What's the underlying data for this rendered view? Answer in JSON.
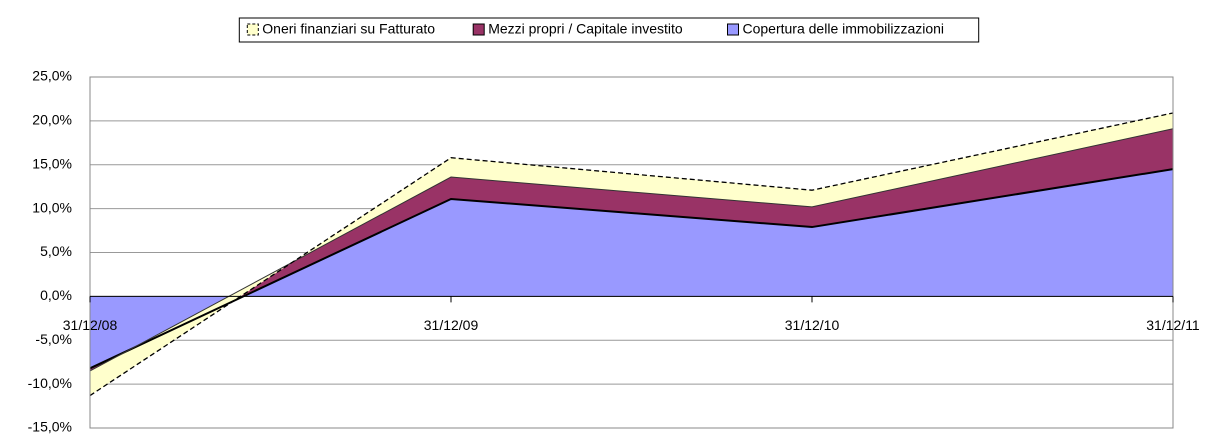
{
  "chart_data": {
    "type": "stacked_area",
    "categories": [
      "31/12/08",
      "31/12/09",
      "31/12/10",
      "31/12/11"
    ],
    "series": [
      {
        "name": "Copertura delle immobilizzazioni",
        "color": "#9999ff",
        "values": [
          -8.2,
          11.1,
          7.9,
          14.5
        ]
      },
      {
        "name": "Mezzi propri / Capitale investito",
        "color": "#993366",
        "values": [
          -0.3,
          2.5,
          2.3,
          4.6
        ]
      },
      {
        "name": "Oneri finanziari su Fatturato",
        "color": "#ffffcc",
        "values": [
          -2.8,
          2.2,
          1.9,
          1.8
        ]
      }
    ],
    "ylim": [
      -15,
      25
    ],
    "yticks": [
      {
        "value": -15,
        "label": "-15,0%"
      },
      {
        "value": -10,
        "label": "-10,0%"
      },
      {
        "value": -5,
        "label": "-5,0%"
      },
      {
        "value": 0,
        "label": "0,0%"
      },
      {
        "value": 5,
        "label": "5,0%"
      },
      {
        "value": 10,
        "label": "10,0%"
      },
      {
        "value": 15,
        "label": "15,0%"
      },
      {
        "value": 20,
        "label": "20,0%"
      },
      {
        "value": 25,
        "label": "25,0%"
      }
    ],
    "grid": true,
    "legend": "top"
  }
}
